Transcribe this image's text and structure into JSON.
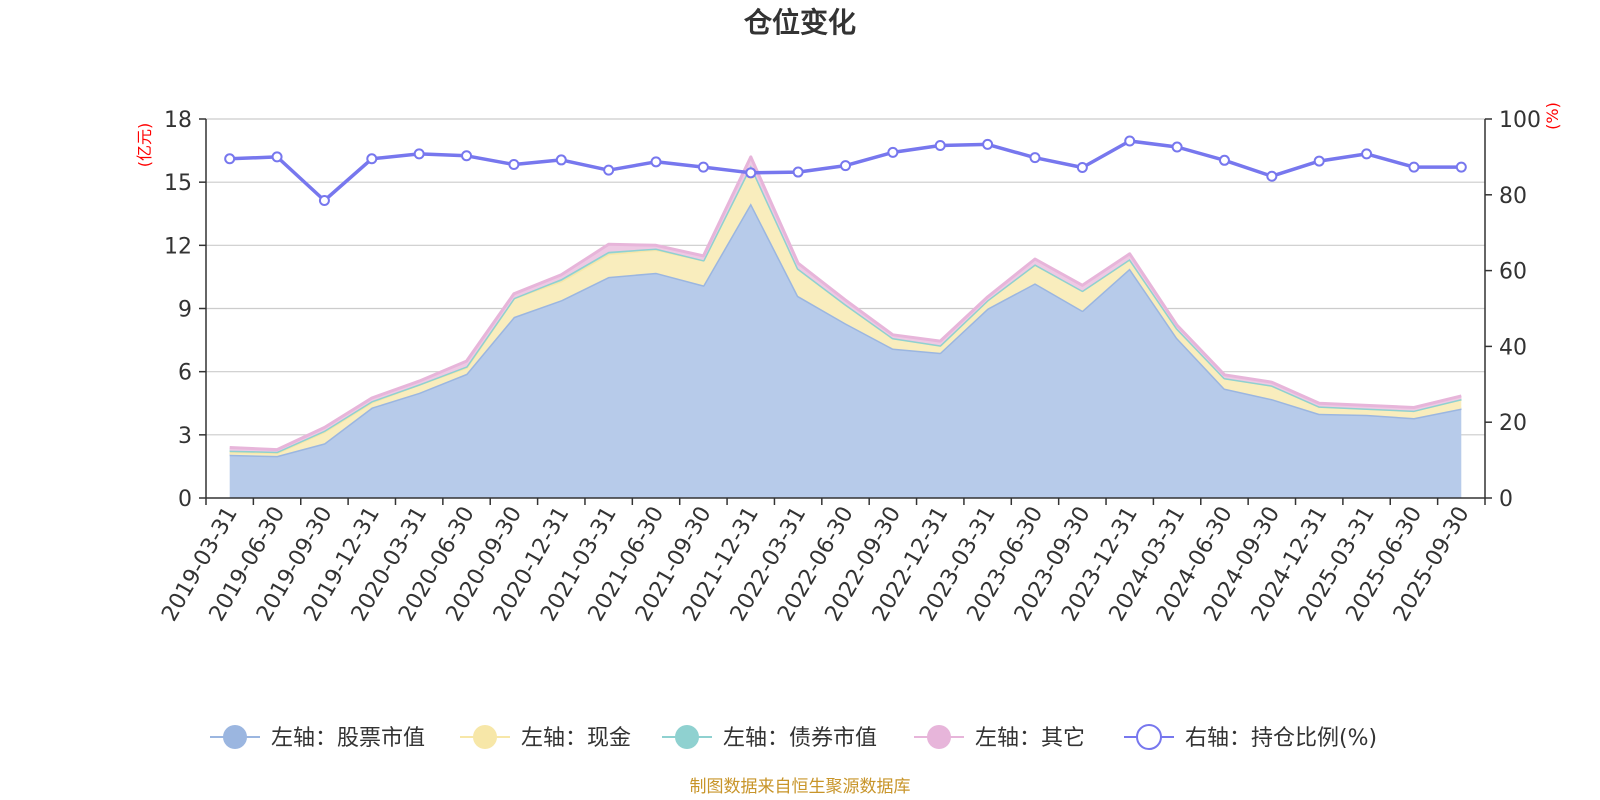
{
  "chart_data": {
    "type": "area",
    "title": "仓位变化",
    "left_unit": "(亿元)",
    "right_unit": "(%)",
    "source": "制图数据来自恒生聚源数据库",
    "categories": [
      "2019-03-31",
      "2019-06-30",
      "2019-09-30",
      "2019-12-31",
      "2020-03-31",
      "2020-06-30",
      "2020-09-30",
      "2020-12-31",
      "2021-03-31",
      "2021-06-30",
      "2021-09-30",
      "2021-12-31",
      "2022-03-31",
      "2022-06-30",
      "2022-09-30",
      "2022-12-31",
      "2023-03-31",
      "2023-06-30",
      "2023-09-30",
      "2023-12-31",
      "2024-03-31",
      "2024-06-30",
      "2024-09-30",
      "2024-12-31",
      "2025-03-31",
      "2025-06-30",
      "2025-09-30"
    ],
    "y_left": {
      "min": 0,
      "max": 18,
      "ticks": [
        "0",
        "3",
        "6",
        "9",
        "12",
        "15",
        "18"
      ]
    },
    "y_right": {
      "min": 0,
      "max": 100,
      "ticks": [
        "0",
        "20",
        "40",
        "60",
        "80",
        "100"
      ]
    },
    "grid": true,
    "legend_position": "bottom",
    "series": [
      {
        "name": "左轴：股票市值",
        "axis": "left",
        "color": "#9bb6e0",
        "fill": "#b7cbea",
        "values": [
          2.05,
          2.0,
          2.6,
          4.3,
          5.0,
          5.9,
          8.6,
          9.4,
          10.5,
          10.7,
          10.1,
          14.0,
          9.6,
          8.3,
          7.1,
          6.9,
          9.0,
          10.2,
          8.9,
          10.9,
          7.6,
          5.2,
          4.7,
          4.0,
          3.95,
          3.8,
          4.25
        ]
      },
      {
        "name": "左轴：现金",
        "axis": "left",
        "color": "#f7e7a8",
        "fill": "#f9edbd",
        "values": [
          0.15,
          0.15,
          0.55,
          0.25,
          0.4,
          0.3,
          0.9,
          0.9,
          1.1,
          1.1,
          1.2,
          1.8,
          1.3,
          0.9,
          0.5,
          0.35,
          0.4,
          0.9,
          0.95,
          0.45,
          0.45,
          0.5,
          0.65,
          0.35,
          0.3,
          0.35,
          0.45
        ]
      },
      {
        "name": "左轴：债券市值",
        "axis": "left",
        "color": "#8fd1d0",
        "fill": "#a6dbda",
        "values": [
          0.05,
          0.05,
          0.05,
          0.05,
          0.0,
          0.05,
          0.0,
          0.1,
          0.1,
          0.05,
          0.0,
          0.0,
          0.0,
          0.0,
          0.0,
          0.0,
          0.0,
          0.0,
          0.0,
          0.0,
          0.0,
          0.0,
          0.0,
          0.0,
          0.0,
          0.0,
          0.0
        ]
      },
      {
        "name": "左轴：其它",
        "axis": "left",
        "color": "#e7b5da",
        "fill": "#eec9e4",
        "values": [
          0.15,
          0.1,
          0.15,
          0.15,
          0.15,
          0.25,
          0.2,
          0.2,
          0.35,
          0.15,
          0.2,
          0.4,
          0.25,
          0.2,
          0.15,
          0.2,
          0.15,
          0.25,
          0.25,
          0.25,
          0.15,
          0.15,
          0.15,
          0.15,
          0.15,
          0.15,
          0.15
        ]
      },
      {
        "name": "右轴：持仓比例(%)",
        "axis": "right",
        "color": "#7777ee",
        "values": [
          89.5,
          90.0,
          78.5,
          89.5,
          90.8,
          90.3,
          88.0,
          89.2,
          86.5,
          88.7,
          87.3,
          85.8,
          86.0,
          87.7,
          91.2,
          93.0,
          93.3,
          89.8,
          87.2,
          94.2,
          92.6,
          89.1,
          84.9,
          88.9,
          90.8,
          87.3,
          87.3
        ]
      }
    ]
  }
}
